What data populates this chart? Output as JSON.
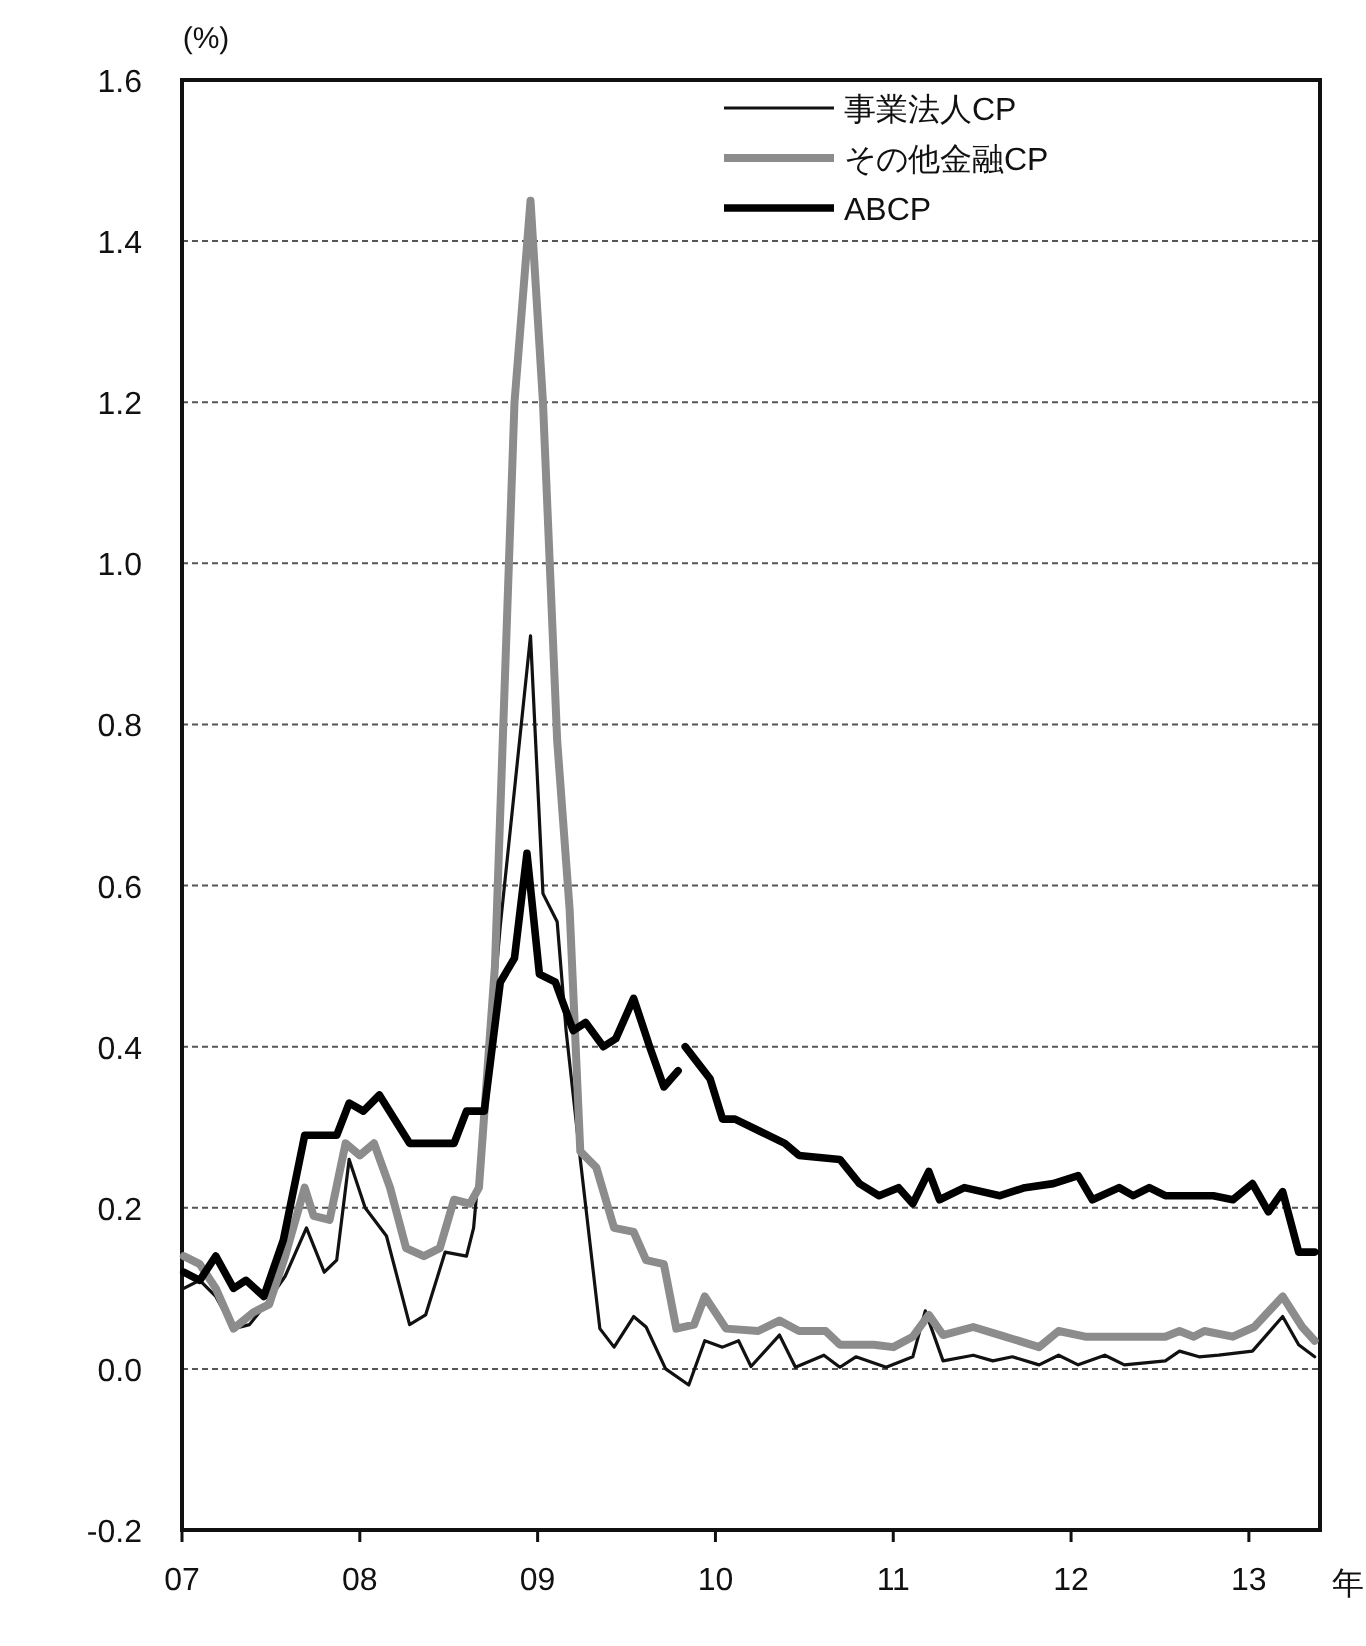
{
  "chart_data": {
    "type": "line",
    "ylabel": "(%)",
    "xlabel": "年",
    "xlim": [
      2007,
      2013.4
    ],
    "xticks": [
      {
        "value": 2007,
        "label": "07"
      },
      {
        "value": 2008,
        "label": "08"
      },
      {
        "value": 2009,
        "label": "09"
      },
      {
        "value": 2010,
        "label": "10"
      },
      {
        "value": 2011,
        "label": "11"
      },
      {
        "value": 2012,
        "label": "12"
      },
      {
        "value": 2013,
        "label": "13"
      }
    ],
    "ylim": [
      -0.2,
      1.6
    ],
    "yticks": [
      -0.2,
      {
        "value": 0,
        "label": "0.0"
      },
      0.2,
      0.4,
      0.6,
      0.8,
      {
        "value": 1,
        "label": "1.0"
      },
      1.2,
      1.4,
      1.6
    ],
    "grid": "y",
    "legend": "top right",
    "line_style": "solid",
    "marker": "none",
    "series": [
      {
        "name": "事業法人CP",
        "color": "#111111",
        "x": [
          2007.01,
          2007.1,
          2007.19,
          2007.29,
          2007.38,
          2007.47,
          2007.58,
          2007.7,
          2007.8,
          2007.87,
          2007.94,
          2008.03,
          2008.15,
          2008.28,
          2008.37,
          2008.48,
          2008.6,
          2008.64,
          2008.79,
          2008.96,
          2009.03,
          2009.11,
          2009.16,
          2009.24,
          2009.35,
          2009.43,
          2009.54,
          2009.61,
          2009.72,
          2009.85,
          2009.94,
          2010.04,
          2010.13,
          2010.2,
          2010.36,
          2010.45,
          2010.61,
          2010.7,
          2010.79,
          2010.96,
          2011.11,
          2011.18,
          2011.28,
          2011.45,
          2011.56,
          2011.67,
          2011.82,
          2011.93,
          2012.04,
          2012.19,
          2012.3,
          2012.53,
          2012.61,
          2012.72,
          2012.83,
          2013.02,
          2013.19,
          2013.28,
          2013.37
        ],
        "values": [
          0.1,
          0.11,
          0.09,
          0.05,
          0.055,
          0.08,
          0.115,
          0.175,
          0.12,
          0.135,
          0.26,
          0.2,
          0.165,
          0.055,
          0.067,
          0.145,
          0.14,
          0.175,
          0.55,
          0.91,
          0.59,
          0.555,
          0.42,
          0.26,
          0.05,
          0.027,
          0.065,
          0.052,
          0.0,
          -0.02,
          0.035,
          0.027,
          0.035,
          0.003,
          0.042,
          0.002,
          0.017,
          0.002,
          0.015,
          0.002,
          0.015,
          0.072,
          0.01,
          0.017,
          0.01,
          0.015,
          0.005,
          0.017,
          0.005,
          0.017,
          0.005,
          0.01,
          0.022,
          0.015,
          0.017,
          0.022,
          0.065,
          0.03,
          0.015
        ]
      },
      {
        "name": "その他金融CP",
        "color": "#8c8c8c",
        "x": [
          2007.01,
          2007.1,
          2007.19,
          2007.29,
          2007.4,
          2007.49,
          2007.58,
          2007.69,
          2007.74,
          2007.83,
          2007.92,
          2008.0,
          2008.08,
          2008.17,
          2008.26,
          2008.36,
          2008.45,
          2008.53,
          2008.62,
          2008.67,
          2008.76,
          2008.87,
          2008.96,
          2009.03,
          2009.11,
          2009.18,
          2009.24,
          2009.33,
          2009.43,
          2009.54,
          2009.61,
          2009.71,
          2009.78,
          2009.88,
          2009.94,
          2010.06,
          2010.24,
          2010.36,
          2010.47,
          2010.62,
          2010.7,
          2010.89,
          2011.0,
          2011.11,
          2011.2,
          2011.28,
          2011.45,
          2011.6,
          2011.82,
          2011.93,
          2012.08,
          2012.53,
          2012.61,
          2012.69,
          2012.75,
          2012.91,
          2013.03,
          2013.19,
          2013.3,
          2013.37
        ],
        "values": [
          0.14,
          0.13,
          0.1,
          0.05,
          0.07,
          0.08,
          0.14,
          0.225,
          0.19,
          0.185,
          0.28,
          0.265,
          0.28,
          0.225,
          0.15,
          0.14,
          0.15,
          0.21,
          0.205,
          0.225,
          0.5,
          1.2,
          1.45,
          1.2,
          0.78,
          0.57,
          0.27,
          0.25,
          0.175,
          0.17,
          0.135,
          0.13,
          0.05,
          0.055,
          0.09,
          0.05,
          0.047,
          0.06,
          0.047,
          0.047,
          0.03,
          0.03,
          0.027,
          0.04,
          0.067,
          0.042,
          0.052,
          0.042,
          0.027,
          0.047,
          0.04,
          0.04,
          0.047,
          0.04,
          0.047,
          0.04,
          0.052,
          0.09,
          0.052,
          0.035
        ]
      },
      {
        "name": "ABCP",
        "color": "#000000",
        "x": [
          2007.01,
          2007.1,
          2007.19,
          2007.29,
          2007.36,
          2007.46,
          2007.57,
          2007.69,
          2007.87,
          2007.94,
          2008.02,
          2008.11,
          2008.28,
          2008.42,
          2008.53,
          2008.6,
          2008.7,
          2008.79,
          2008.87,
          2008.94,
          2009.01,
          2009.1,
          2009.2,
          2009.27,
          2009.37,
          2009.44,
          2009.54,
          2009.63,
          2009.71,
          2009.79,
          2009.81,
          2009.83,
          2009.97,
          2010.04,
          2010.11,
          2010.25,
          2010.39,
          2010.47,
          2010.7,
          2010.81,
          2010.92,
          2011.03,
          2011.11,
          2011.2,
          2011.26,
          2011.4,
          2011.6,
          2011.74,
          2011.9,
          2012.04,
          2012.12,
          2012.27,
          2012.35,
          2012.44,
          2012.53,
          2012.8,
          2012.91,
          2013.02,
          2013.11,
          2013.19,
          2013.28,
          2013.37
        ],
        "values": [
          0.12,
          0.11,
          0.14,
          0.1,
          0.11,
          0.09,
          0.16,
          0.29,
          0.29,
          0.33,
          0.32,
          0.34,
          0.28,
          0.28,
          0.28,
          0.32,
          0.32,
          0.48,
          0.51,
          0.64,
          0.49,
          0.48,
          0.42,
          0.43,
          0.4,
          0.41,
          0.46,
          0.4,
          0.35,
          0.37,
          null,
          0.4,
          0.36,
          0.31,
          0.31,
          0.295,
          0.28,
          0.265,
          0.26,
          0.23,
          0.215,
          0.225,
          0.205,
          0.245,
          0.21,
          0.225,
          0.215,
          0.225,
          0.23,
          0.24,
          0.21,
          0.225,
          0.215,
          0.225,
          0.215,
          0.215,
          0.21,
          0.23,
          0.195,
          0.22,
          0.145,
          0.145
        ]
      }
    ]
  }
}
